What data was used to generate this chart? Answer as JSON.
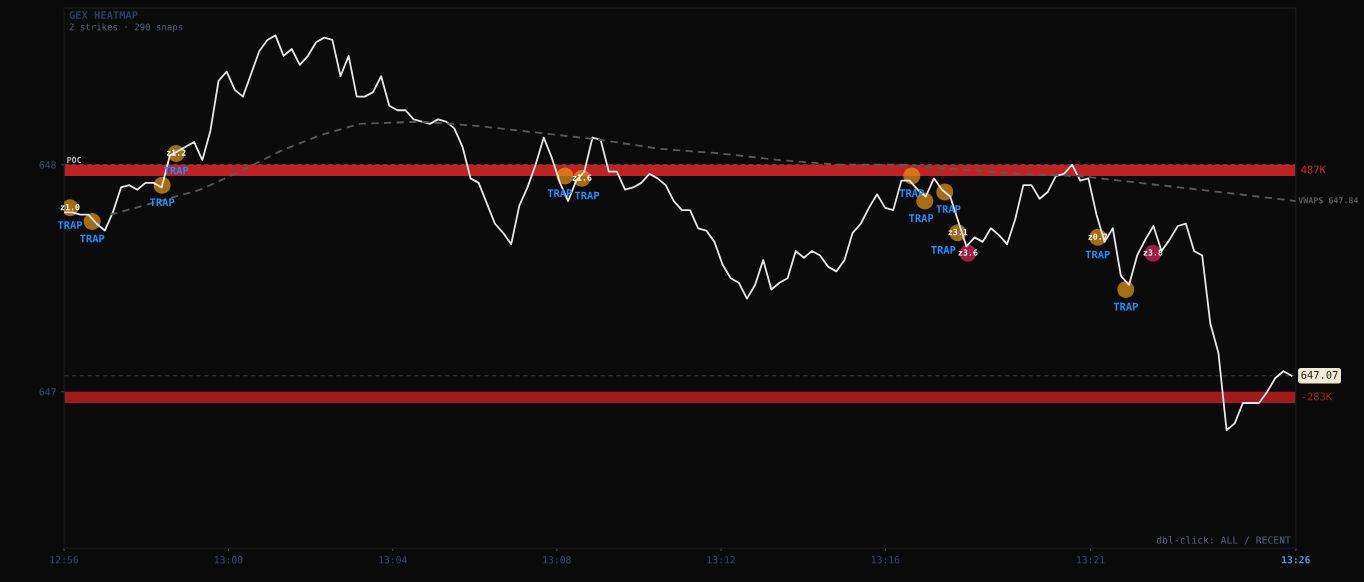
{
  "chart_data": {
    "type": "line",
    "title": "GEX HEATMAP",
    "subtitle": "2 strikes · 290 snaps",
    "xlim": [
      12.9333,
      13.4333
    ],
    "ylim": [
      646.31,
      648.69
    ],
    "xticks": [
      {
        "value": 12.9333,
        "label": "12:56"
      },
      {
        "value": 13.0,
        "label": "13:00"
      },
      {
        "value": 13.0667,
        "label": "13:04"
      },
      {
        "value": 13.1333,
        "label": "13:08"
      },
      {
        "value": 13.2,
        "label": "13:12"
      },
      {
        "value": 13.2667,
        "label": "13:16"
      },
      {
        "value": 13.35,
        "label": "13:21"
      },
      {
        "value": 13.4333,
        "label": "13:26"
      }
    ],
    "yticks": [
      647,
      648
    ],
    "grid": false,
    "marker": "none",
    "series": [
      {
        "color": "#e6e6e6",
        "line_style": "solid",
        "x": [
          12.9333,
          12.9366,
          12.9399,
          12.9432,
          12.9465,
          12.9498,
          12.9531,
          12.9564,
          12.9597,
          12.963,
          12.9663,
          12.9696,
          12.9729,
          12.9762,
          12.9795,
          12.9828,
          12.9861,
          12.9894,
          12.9927,
          12.996,
          12.9993,
          13.0026,
          13.0059,
          13.0092,
          13.0125,
          13.0158,
          13.0191,
          13.0224,
          13.0257,
          13.029,
          13.0323,
          13.0356,
          13.0389,
          13.0422,
          13.0455,
          13.0488,
          13.0521,
          13.0554,
          13.0587,
          13.062,
          13.0653,
          13.0686,
          13.0719,
          13.0752,
          13.0785,
          13.0818,
          13.0851,
          13.0884,
          13.0917,
          13.095,
          13.0983,
          13.1016,
          13.1049,
          13.1082,
          13.1115,
          13.1148,
          13.1181,
          13.1214,
          13.1247,
          13.128,
          13.1313,
          13.1346,
          13.1379,
          13.1412,
          13.1445,
          13.1478,
          13.1511,
          13.1544,
          13.1577,
          13.161,
          13.1643,
          13.1676,
          13.1709,
          13.1742,
          13.1775,
          13.1808,
          13.1841,
          13.1874,
          13.1907,
          13.194,
          13.1973,
          13.2006,
          13.2039,
          13.2072,
          13.2105,
          13.2138,
          13.2171,
          13.2204,
          13.2237,
          13.227,
          13.2303,
          13.2336,
          13.2369,
          13.2402,
          13.2435,
          13.2468,
          13.2501,
          13.2534,
          13.2567,
          13.26,
          13.2633,
          13.2666,
          13.2699,
          13.2732,
          13.2765,
          13.2798,
          13.2831,
          13.2864,
          13.2897,
          13.293,
          13.2963,
          13.2996,
          13.3029,
          13.3062,
          13.3095,
          13.3128,
          13.3161,
          13.3194,
          13.3227,
          13.326,
          13.3293,
          13.3326,
          13.3359,
          13.3392,
          13.3425,
          13.3458,
          13.3491,
          13.3524,
          13.3557,
          13.359,
          13.3623,
          13.3656,
          13.3689,
          13.3722,
          13.3755,
          13.3788,
          13.3821,
          13.3854,
          13.3887,
          13.392,
          13.3953,
          13.3986,
          13.4019,
          13.4052,
          13.4085,
          13.4118,
          13.4151,
          13.4184,
          13.4217,
          13.425,
          13.4283,
          13.4316
        ],
        "values": [
          647.79,
          647.79,
          647.78,
          647.78,
          647.74,
          647.71,
          647.79,
          647.9,
          647.91,
          647.89,
          647.92,
          647.92,
          647.9,
          648.04,
          648.06,
          648.08,
          648.1,
          648.02,
          648.15,
          648.37,
          648.41,
          648.33,
          648.3,
          648.4,
          648.5,
          648.55,
          648.57,
          648.48,
          648.51,
          648.44,
          648.48,
          648.54,
          648.56,
          648.55,
          648.39,
          648.48,
          648.3,
          648.3,
          648.32,
          648.39,
          648.26,
          648.24,
          648.24,
          648.2,
          648.19,
          648.18,
          648.2,
          648.19,
          648.16,
          648.08,
          647.94,
          647.92,
          647.83,
          647.74,
          647.7,
          647.65,
          647.82,
          647.9,
          648.0,
          648.12,
          648.03,
          647.92,
          647.84,
          647.93,
          647.97,
          648.12,
          648.11,
          647.97,
          647.97,
          647.89,
          647.9,
          647.92,
          647.96,
          647.94,
          647.91,
          647.84,
          647.8,
          647.8,
          647.72,
          647.71,
          647.66,
          647.56,
          647.5,
          647.48,
          647.41,
          647.47,
          647.58,
          647.45,
          647.48,
          647.5,
          647.62,
          647.59,
          647.62,
          647.6,
          647.55,
          647.53,
          647.58,
          647.7,
          647.74,
          647.81,
          647.87,
          647.81,
          647.8,
          647.93,
          647.93,
          647.89,
          647.86,
          647.94,
          647.89,
          647.86,
          647.75,
          647.64,
          647.68,
          647.66,
          647.72,
          647.69,
          647.65,
          647.76,
          647.91,
          647.91,
          647.85,
          647.88,
          647.95,
          647.96,
          648.0,
          647.93,
          647.94,
          647.78,
          647.66,
          647.72,
          647.51,
          647.47,
          647.6,
          647.67,
          647.73,
          647.62,
          647.67,
          647.73,
          647.74,
          647.62,
          647.6,
          647.3,
          647.17,
          646.83,
          646.86,
          646.95,
          646.95,
          646.95,
          647.0,
          647.06,
          647.09,
          647.07
        ]
      },
      {
        "type": "line",
        "name": "VWAPS 647.84",
        "color": "#5a5a5a",
        "line_style": "dashed",
        "x": [
          12.952,
          12.9723,
          12.9885,
          13.0047,
          13.021,
          13.0372,
          13.0534,
          13.0778,
          13.1021,
          13.1265,
          13.1508,
          13.1752,
          13.1995,
          13.2239,
          13.2482,
          13.2726,
          13.2969,
          13.3213,
          13.3456,
          13.37,
          13.3943,
          13.4333
        ],
        "values": [
          647.78,
          647.84,
          647.89,
          647.97,
          648.06,
          648.13,
          648.18,
          648.19,
          648.17,
          648.14,
          648.11,
          648.07,
          648.05,
          648.02,
          648.0,
          648.0,
          647.98,
          647.96,
          647.95,
          647.92,
          647.89,
          647.84
        ]
      },
      {
        "type": "scatter",
        "marker": "circle",
        "x": [
          12.9357,
          12.9447,
          12.9731,
          12.9788,
          13.1366,
          13.1435,
          13.2774,
          13.2827,
          13.2908,
          13.2961,
          13.3002,
          13.3529,
          13.3643,
          13.3753
        ],
        "values": [
          647.81,
          647.75,
          647.91,
          648.05,
          647.95,
          647.94,
          647.95,
          647.84,
          647.88,
          647.7,
          647.61,
          647.68,
          647.45,
          647.61
        ],
        "colors": [
          "#e8941a",
          "#e8941a",
          "#e8941a",
          "#e8941a",
          "#e8941a",
          "#e8941a",
          "#e8941a",
          "#e8941a",
          "#e8941a",
          "#e8941a",
          "#e0245e",
          "#e8941a",
          "#e8941a",
          "#e0245e"
        ]
      }
    ],
    "ref_lines": [
      {
        "axis": "y",
        "value": 648,
        "label": "POC",
        "color": "#5a5a5a",
        "line_style": "dashed"
      },
      {
        "axis": "y",
        "value": 647.07,
        "label": "647.07",
        "color": "#3a3a3a",
        "line_style": "dashed"
      }
    ],
    "bands": [
      {
        "axis": "y",
        "from": 647.95,
        "to": 648.0,
        "label": "487K",
        "color": "#d42424"
      },
      {
        "axis": "y",
        "from": 646.95,
        "to": 647.0,
        "label": "-283K",
        "color": "#b01e1e"
      }
    ],
    "annotations": [
      {
        "text": "z1.0",
        "x": 12.9357,
        "y": 647.81
      },
      {
        "text": "TRAP",
        "x": 12.9357,
        "y": 647.81
      },
      {
        "text": "TRAP",
        "x": 12.9447,
        "y": 647.75
      },
      {
        "text": "TRAP",
        "x": 12.9731,
        "y": 647.91
      },
      {
        "text": "z1.2",
        "x": 12.9788,
        "y": 648.05
      },
      {
        "text": "TRAP",
        "x": 12.9788,
        "y": 648.05
      },
      {
        "text": "TRAP",
        "x": 13.1366,
        "y": 647.95
      },
      {
        "text": "z1.6",
        "x": 13.1435,
        "y": 647.94
      },
      {
        "text": "TRAP",
        "x": 13.1435,
        "y": 647.94
      },
      {
        "text": "TRAP",
        "x": 13.2774,
        "y": 647.95
      },
      {
        "text": "TRAP",
        "x": 13.2827,
        "y": 647.84
      },
      {
        "text": "TRAP",
        "x": 13.2908,
        "y": 647.88
      },
      {
        "text": "z3.1",
        "x": 13.2961,
        "y": 647.7
      },
      {
        "text": "TRAP",
        "x": 13.2961,
        "y": 647.7
      },
      {
        "text": "z3.6",
        "x": 13.3002,
        "y": 647.61
      },
      {
        "text": "z0.7",
        "x": 13.3529,
        "y": 647.68
      },
      {
        "text": "TRAP",
        "x": 13.3529,
        "y": 647.68
      },
      {
        "text": "TRAP",
        "x": 13.3643,
        "y": 647.45
      },
      {
        "text": "z3.8",
        "x": 13.3753,
        "y": 647.61
      },
      "dbl-click: ALL / RECENT"
    ]
  }
}
